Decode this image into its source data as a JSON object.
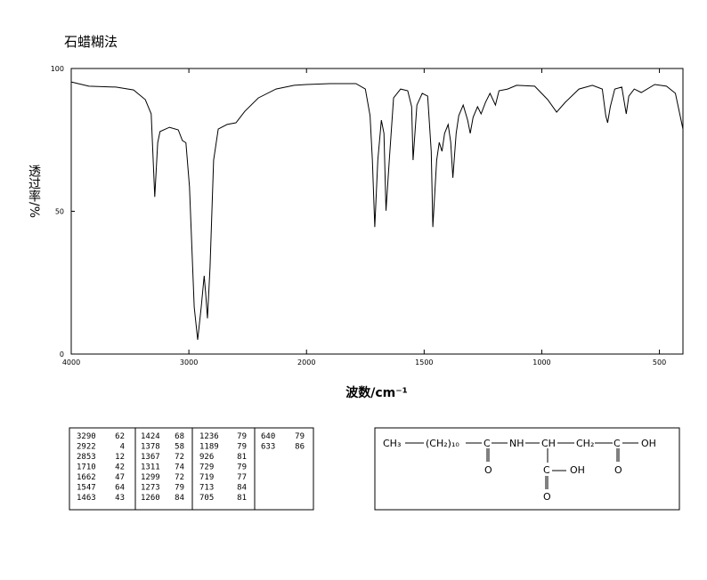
{
  "chart_data": {
    "type": "line",
    "title": "石蜡糊法",
    "xlabel": "波数/cm⁻¹",
    "ylabel": "透过率/%",
    "xlim": [
      4000,
      400
    ],
    "x_scale_change": {
      "at": 2000,
      "ratio": 2
    },
    "xticks": [
      4000,
      3000,
      2000,
      1500,
      1000,
      500
    ],
    "ylim": [
      0,
      100
    ],
    "yticks": [
      0,
      50,
      100
    ],
    "color": "#000000",
    "x": [
      4000,
      3850,
      3620,
      3470,
      3370,
      3320,
      3290,
      3265,
      3245,
      3165,
      3090,
      3055,
      3025,
      2995,
      2955,
      2925,
      2895,
      2870,
      2857,
      2842,
      2820,
      2790,
      2750,
      2675,
      2600,
      2525,
      2410,
      2260,
      2105,
      2000,
      1900,
      1790,
      1750,
      1730,
      1720,
      1710,
      1697,
      1682,
      1671,
      1662,
      1648,
      1630,
      1600,
      1570,
      1553,
      1547,
      1531,
      1508,
      1485,
      1470,
      1463,
      1447,
      1436,
      1424,
      1413,
      1398,
      1387,
      1378,
      1364,
      1353,
      1334,
      1315,
      1304,
      1292,
      1273,
      1258,
      1239,
      1220,
      1197,
      1182,
      1145,
      1107,
      1030,
      975,
      937,
      900,
      842,
      785,
      743,
      728,
      720,
      709,
      690,
      660,
      641,
      630,
      607,
      577,
      520,
      470,
      432,
      400
    ],
    "values": [
      95.3,
      93.8,
      93.5,
      92.5,
      89.1,
      84.1,
      55,
      74,
      77.9,
      79.4,
      78.5,
      74.8,
      74,
      58.6,
      16.5,
      5,
      16.5,
      27.4,
      21.2,
      12.5,
      30.5,
      67.9,
      78.8,
      80.4,
      81,
      85,
      89.7,
      92.8,
      94.1,
      94.4,
      94.7,
      94.7,
      92.8,
      83.5,
      67.9,
      44.5,
      67.9,
      81.9,
      77.3,
      50.2,
      67.9,
      89.7,
      92.8,
      92.2,
      86.6,
      67.9,
      87.2,
      91.3,
      90.3,
      71,
      44.5,
      67.9,
      74.1,
      71,
      77.3,
      80.4,
      74.1,
      61.7,
      77.3,
      83.5,
      87.2,
      81.9,
      77.3,
      82.9,
      86.6,
      84.1,
      88.2,
      91.3,
      87.2,
      92.2,
      92.8,
      94.1,
      93.8,
      89.1,
      84.7,
      88.2,
      92.8,
      94.1,
      92.8,
      83.5,
      81,
      86.6,
      92.8,
      93.5,
      84.1,
      90.3,
      92.8,
      91.6,
      94.4,
      93.8,
      91.3,
      78.8
    ]
  },
  "peak_table": {
    "columns": [
      [
        [
          3290,
          62
        ],
        [
          2922,
          4
        ],
        [
          2853,
          12
        ],
        [
          1710,
          42
        ],
        [
          1662,
          47
        ],
        [
          1547,
          64
        ],
        [
          1463,
          43
        ]
      ],
      [
        [
          1424,
          68
        ],
        [
          1378,
          58
        ],
        [
          1367,
          72
        ],
        [
          1311,
          74
        ],
        [
          1299,
          72
        ],
        [
          1273,
          79
        ],
        [
          1260,
          84
        ]
      ],
      [
        [
          1236,
          79
        ],
        [
          1189,
          79
        ],
        [
          926,
          81
        ],
        [
          729,
          79
        ],
        [
          719,
          77
        ],
        [
          713,
          84
        ],
        [
          705,
          81
        ]
      ],
      [
        [
          640,
          79
        ],
        [
          633,
          86
        ]
      ]
    ]
  },
  "structure": {
    "main": [
      "CH₃",
      "(CH₂)₁₀",
      "C",
      "NH",
      "CH",
      "CH₂",
      "C",
      "OH"
    ],
    "branch": [
      "O",
      "C",
      "OH",
      "O",
      "O"
    ]
  }
}
